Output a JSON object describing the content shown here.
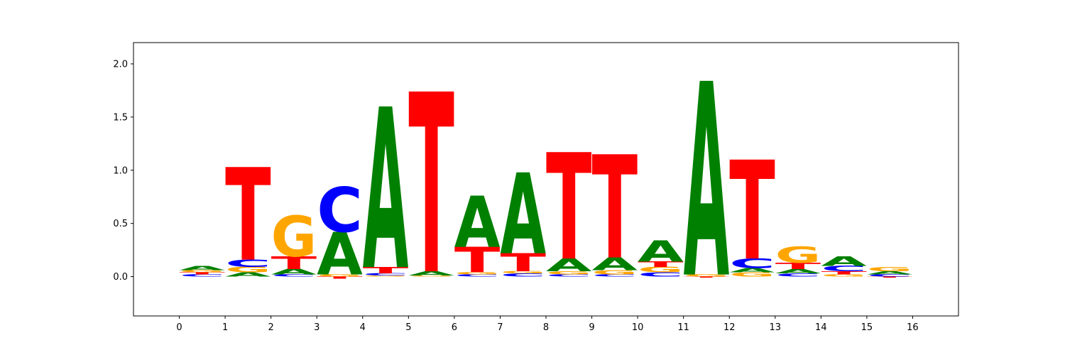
{
  "chart_data": {
    "type": "sequence_logo",
    "title": "",
    "xlabel": "",
    "ylabel": "",
    "ylim": [
      -0.37,
      2.2
    ],
    "xlim": [
      -1,
      17
    ],
    "x_ticks": [
      0,
      1,
      2,
      3,
      4,
      5,
      6,
      7,
      8,
      9,
      10,
      11,
      12,
      13,
      14,
      15,
      16
    ],
    "y_ticks": [
      0.0,
      0.5,
      1.0,
      1.5,
      2.0
    ],
    "y_tick_labels": [
      "0.0",
      "0.5",
      "1.0",
      "1.5",
      "2.0"
    ],
    "grid": false,
    "legend": "none",
    "letter_colors": {
      "A": "#008000",
      "C": "#0000ff",
      "G": "#ffa500",
      "T": "#ff0000"
    },
    "positions": [
      {
        "x": 0.5,
        "stack": [
          [
            "C",
            0.02
          ],
          [
            "T",
            0.02
          ],
          [
            "G",
            0.02
          ],
          [
            "A",
            0.04
          ]
        ]
      },
      {
        "x": 1.5,
        "stack": [
          [
            "A",
            0.04
          ],
          [
            "G",
            0.05
          ],
          [
            "C",
            0.07
          ],
          [
            "T",
            0.87
          ]
        ]
      },
      {
        "x": 2.5,
        "stack": [
          [
            "C",
            0.02
          ],
          [
            "A",
            0.05
          ],
          [
            "T",
            0.12
          ],
          [
            "G",
            0.38
          ]
        ]
      },
      {
        "x": 3.5,
        "stack": [
          [
            "T",
            -0.02
          ],
          [
            "G",
            0.02
          ],
          [
            "A",
            0.4
          ],
          [
            "C",
            0.42
          ]
        ]
      },
      {
        "x": 4.5,
        "stack": [
          [
            "G",
            0.01
          ],
          [
            "C",
            0.02
          ],
          [
            "T",
            0.06
          ],
          [
            "A",
            1.51
          ]
        ]
      },
      {
        "x": 5.5,
        "stack": [
          [
            "G",
            0.01
          ],
          [
            "A",
            0.04
          ],
          [
            "T",
            1.69
          ]
        ]
      },
      {
        "x": 6.5,
        "stack": [
          [
            "C",
            0.02
          ],
          [
            "G",
            0.02
          ],
          [
            "T",
            0.24
          ],
          [
            "A",
            0.48
          ]
        ]
      },
      {
        "x": 7.5,
        "stack": [
          [
            "C",
            0.03
          ],
          [
            "G",
            0.02
          ],
          [
            "T",
            0.17
          ],
          [
            "A",
            0.76
          ]
        ]
      },
      {
        "x": 8.5,
        "stack": [
          [
            "C",
            0.02
          ],
          [
            "G",
            0.03
          ],
          [
            "A",
            0.12
          ],
          [
            "T",
            1.0
          ]
        ]
      },
      {
        "x": 9.5,
        "stack": [
          [
            "C",
            0.02
          ],
          [
            "G",
            0.04
          ],
          [
            "A",
            0.12
          ],
          [
            "T",
            0.97
          ]
        ]
      },
      {
        "x": 10.5,
        "stack": [
          [
            "C",
            0.04
          ],
          [
            "G",
            0.05
          ],
          [
            "T",
            0.05
          ],
          [
            "A",
            0.2
          ]
        ]
      },
      {
        "x": 11.5,
        "stack": [
          [
            "T",
            -0.01
          ],
          [
            "G",
            0.02
          ],
          [
            "A",
            1.82
          ]
        ]
      },
      {
        "x": 12.5,
        "stack": [
          [
            "G",
            0.04
          ],
          [
            "A",
            0.04
          ],
          [
            "C",
            0.09
          ],
          [
            "T",
            0.93
          ]
        ]
      },
      {
        "x": 13.5,
        "stack": [
          [
            "C",
            0.03
          ],
          [
            "A",
            0.04
          ],
          [
            "T",
            0.06
          ],
          [
            "G",
            0.15
          ]
        ]
      },
      {
        "x": 14.5,
        "stack": [
          [
            "G",
            0.02
          ],
          [
            "T",
            0.03
          ],
          [
            "C",
            0.05
          ],
          [
            "A",
            0.09
          ]
        ]
      },
      {
        "x": 15.5,
        "stack": [
          [
            "T",
            -0.01
          ],
          [
            "C",
            0.02
          ],
          [
            "A",
            0.03
          ],
          [
            "G",
            0.04
          ]
        ]
      }
    ]
  }
}
